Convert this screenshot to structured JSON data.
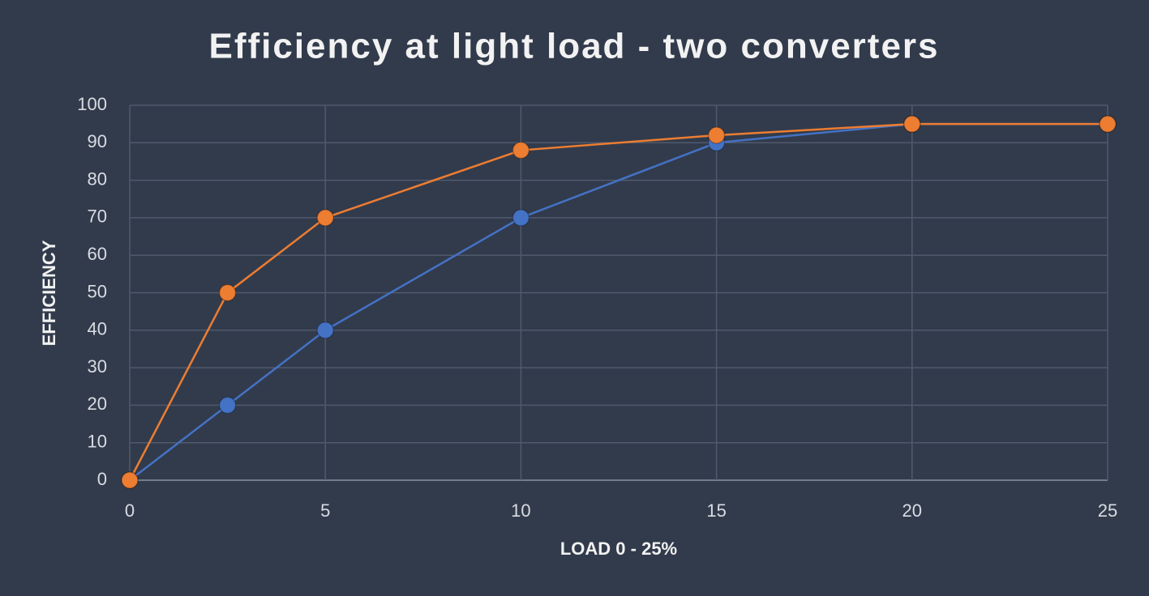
{
  "chart_data": {
    "type": "line",
    "title": "Efficiency at light load - two converters",
    "x_label": "LOAD 0 - 25%",
    "y_label": "EFFICIENCY",
    "x": [
      0,
      2.5,
      5,
      10,
      15,
      20,
      25
    ],
    "series": [
      {
        "color": "#4472c4",
        "values": [
          0,
          20,
          40,
          70,
          90,
          95,
          95
        ]
      },
      {
        "color": "#ed7d31",
        "values": [
          0,
          50,
          70,
          88,
          92,
          95,
          95
        ]
      }
    ],
    "xlim": [
      0,
      25
    ],
    "xticks": [
      0,
      5,
      10,
      15,
      20,
      25
    ],
    "ylim": [
      0,
      100
    ],
    "yticks": [
      0,
      10,
      20,
      30,
      40,
      50,
      60,
      70,
      80,
      90,
      100
    ],
    "grid": true
  }
}
